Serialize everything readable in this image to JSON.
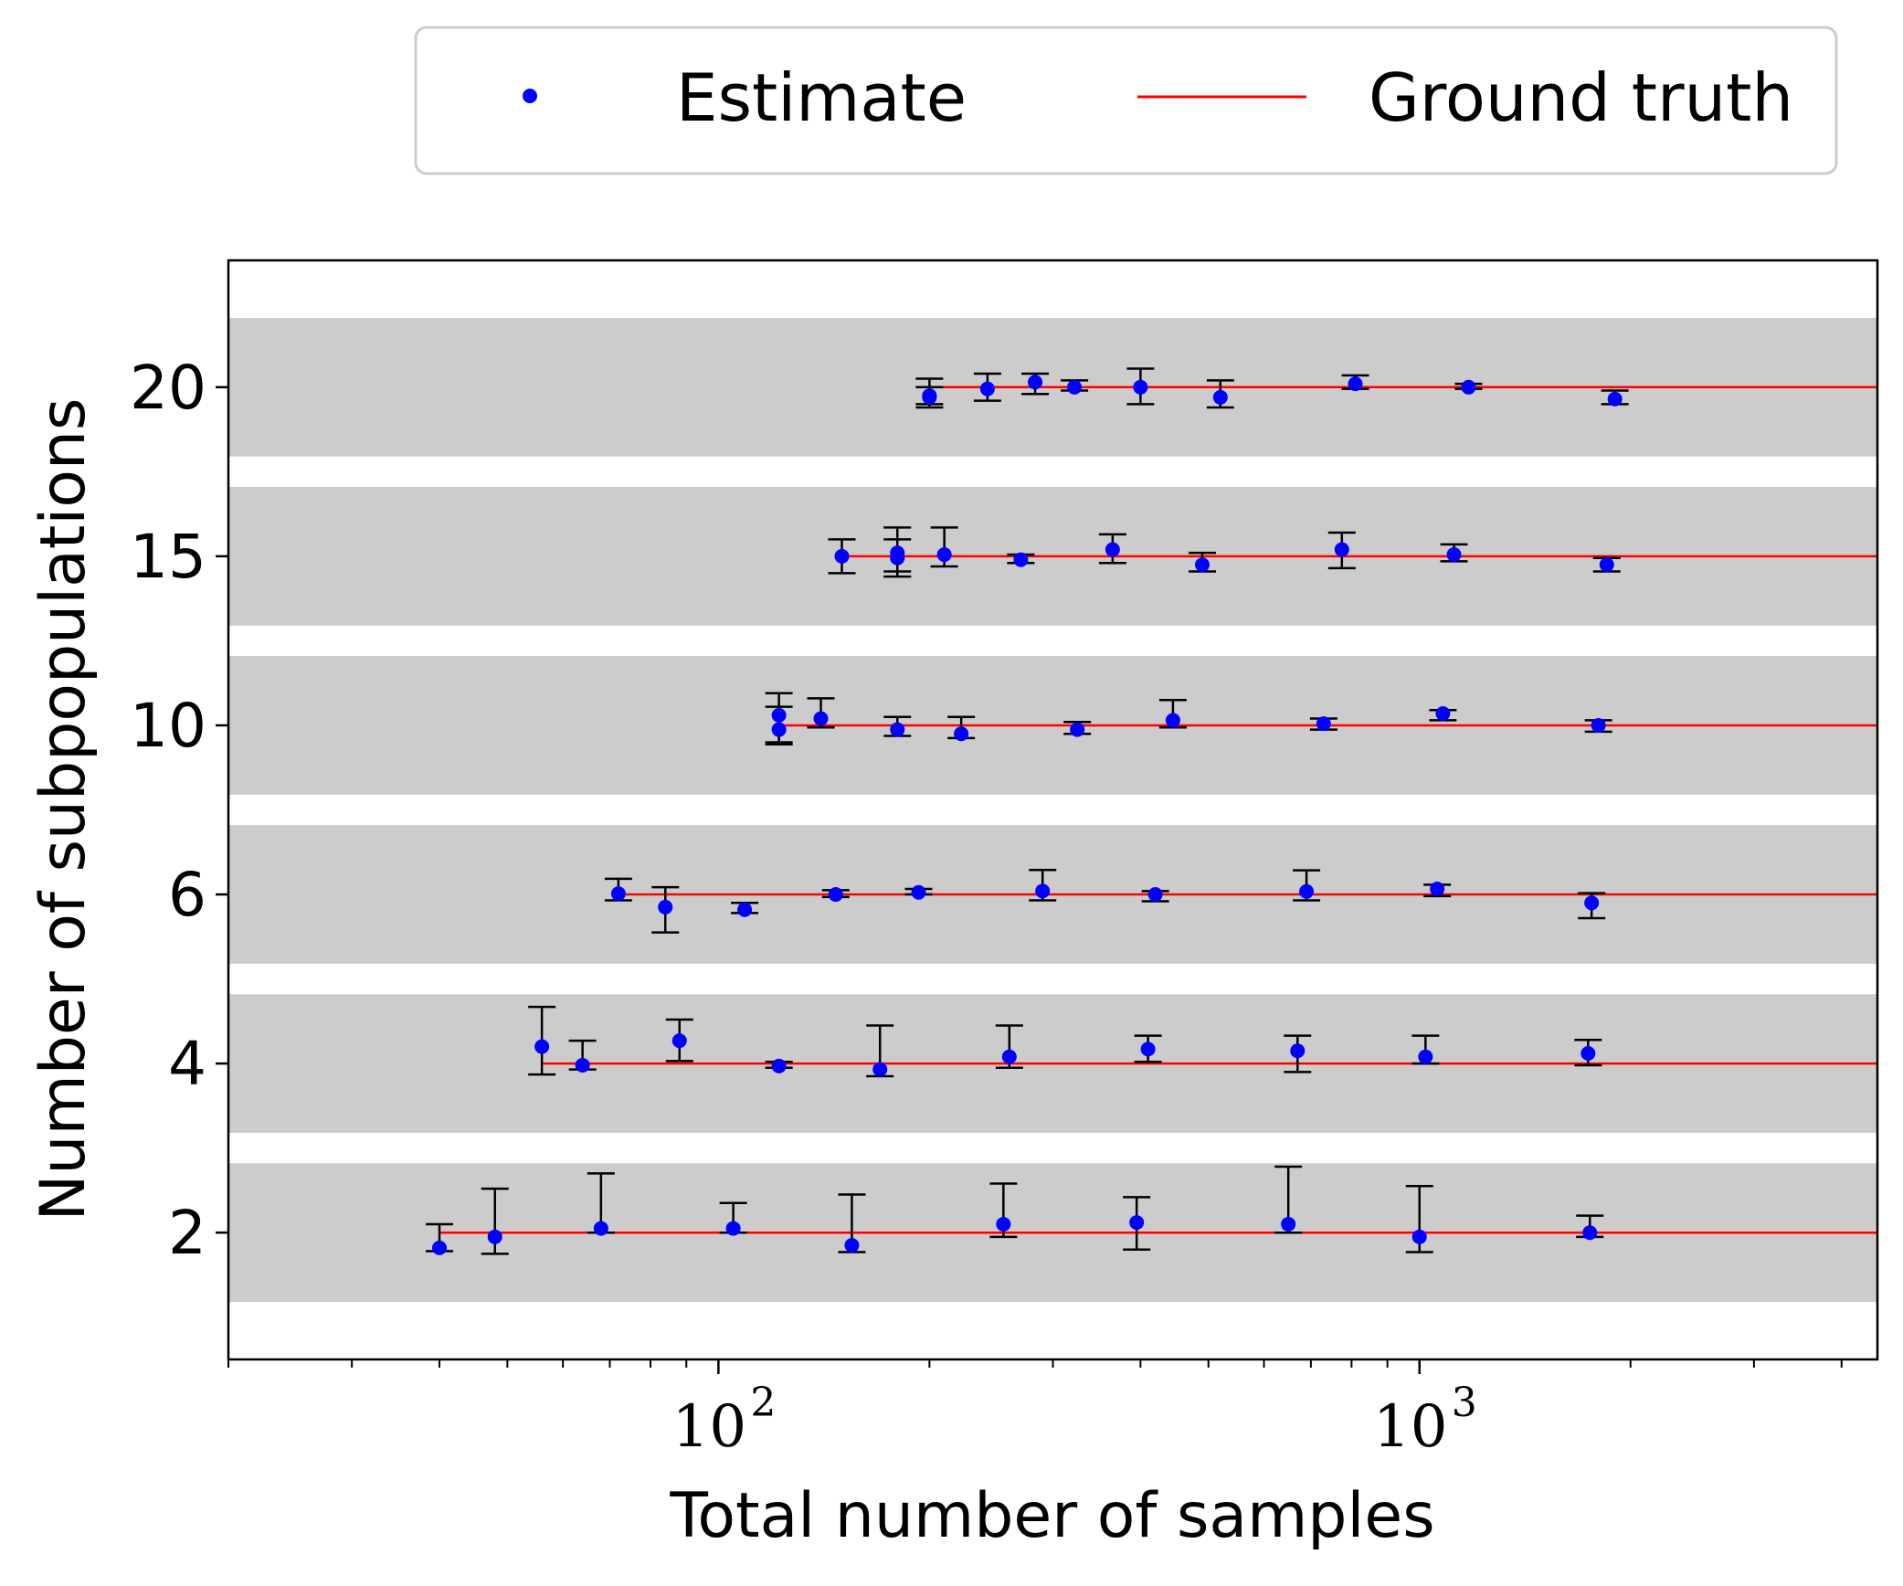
{
  "chart_data": {
    "type": "scatter",
    "title": "",
    "xlabel": "Total number of samples",
    "ylabel": "Number of subpopulations",
    "x_scale": "log",
    "xlim": [
      20,
      4500
    ],
    "x_ticks": [
      {
        "base": "10",
        "exp": "2",
        "value": 100
      },
      {
        "base": "10",
        "exp": "3",
        "value": 1000
      }
    ],
    "y_categories": [
      "2",
      "4",
      "6",
      "10",
      "15",
      "20"
    ],
    "y_display_range": [
      -0.75,
      5.75
    ],
    "band_half_height": 0.41,
    "legend": {
      "position": "top-center, above plot",
      "entries": [
        {
          "label": "Estimate",
          "marker": "dot",
          "color": "#0000ff"
        },
        {
          "label": "Ground truth",
          "marker": "line",
          "color": "#ff0000"
        }
      ]
    },
    "colors": {
      "estimate": "#0000ff",
      "ground_truth": "#ff0000",
      "errorbar": "#000000",
      "band": "#cccccc"
    },
    "series": [
      {
        "group": "2",
        "ground_truth": 2,
        "truth_x_start": 40,
        "points": [
          {
            "x": 40,
            "y": 1.82,
            "lo": 1.78,
            "hi": 2.1
          },
          {
            "x": 48,
            "y": 1.95,
            "lo": 1.75,
            "hi": 2.52
          },
          {
            "x": 68,
            "y": 2.05,
            "lo": 2.0,
            "hi": 2.7
          },
          {
            "x": 105,
            "y": 2.05,
            "lo": 2.0,
            "hi": 2.35
          },
          {
            "x": 155,
            "y": 1.85,
            "lo": 1.77,
            "hi": 2.45
          },
          {
            "x": 255,
            "y": 2.1,
            "lo": 1.95,
            "hi": 2.58
          },
          {
            "x": 395,
            "y": 2.12,
            "lo": 1.8,
            "hi": 2.42
          },
          {
            "x": 650,
            "y": 2.1,
            "lo": 2.0,
            "hi": 2.78
          },
          {
            "x": 1000,
            "y": 1.95,
            "lo": 1.77,
            "hi": 2.55
          },
          {
            "x": 1750,
            "y": 2.0,
            "lo": 1.95,
            "hi": 2.2
          }
        ]
      },
      {
        "group": "4",
        "ground_truth": 4,
        "truth_x_start": 56,
        "points": [
          {
            "x": 56,
            "y": 4.2,
            "lo": 3.87,
            "hi": 4.67
          },
          {
            "x": 64,
            "y": 3.98,
            "lo": 3.93,
            "hi": 4.27
          },
          {
            "x": 88,
            "y": 4.27,
            "lo": 4.03,
            "hi": 4.52
          },
          {
            "x": 122,
            "y": 3.97,
            "lo": 3.95,
            "hi": 4.02
          },
          {
            "x": 170,
            "y": 3.93,
            "lo": 3.85,
            "hi": 4.45
          },
          {
            "x": 260,
            "y": 4.08,
            "lo": 3.95,
            "hi": 4.45
          },
          {
            "x": 410,
            "y": 4.17,
            "lo": 4.02,
            "hi": 4.33
          },
          {
            "x": 670,
            "y": 4.15,
            "lo": 3.9,
            "hi": 4.33
          },
          {
            "x": 1020,
            "y": 4.08,
            "lo": 4.0,
            "hi": 4.33
          },
          {
            "x": 1740,
            "y": 4.12,
            "lo": 3.98,
            "hi": 4.28
          }
        ]
      },
      {
        "group": "6",
        "ground_truth": 6,
        "truth_x_start": 72,
        "points": [
          {
            "x": 72,
            "y": 6.02,
            "lo": 5.93,
            "hi": 6.37
          },
          {
            "x": 84,
            "y": 5.85,
            "lo": 5.55,
            "hi": 6.17
          },
          {
            "x": 109,
            "y": 5.82,
            "lo": 5.78,
            "hi": 5.9
          },
          {
            "x": 147,
            "y": 6.0,
            "lo": 5.97,
            "hi": 6.1
          },
          {
            "x": 193,
            "y": 6.05,
            "lo": 6.0,
            "hi": 6.13
          },
          {
            "x": 290,
            "y": 6.08,
            "lo": 5.93,
            "hi": 6.58
          },
          {
            "x": 420,
            "y": 6.0,
            "lo": 5.92,
            "hi": 6.08
          },
          {
            "x": 690,
            "y": 6.07,
            "lo": 5.93,
            "hi": 6.57
          },
          {
            "x": 1060,
            "y": 6.13,
            "lo": 5.98,
            "hi": 6.23
          },
          {
            "x": 1760,
            "y": 5.9,
            "lo": 5.72,
            "hi": 6.03
          }
        ]
      },
      {
        "group": "10",
        "ground_truth": 10,
        "truth_x_start": 122,
        "points": [
          {
            "x": 122,
            "y": 10.3,
            "lo": 9.55,
            "hi": 10.95
          },
          {
            "x": 122,
            "y": 9.9,
            "lo": 9.6,
            "hi": 10.55
          },
          {
            "x": 140,
            "y": 10.2,
            "lo": 9.95,
            "hi": 10.8
          },
          {
            "x": 180,
            "y": 9.9,
            "lo": 9.75,
            "hi": 10.25
          },
          {
            "x": 222,
            "y": 9.8,
            "lo": 9.7,
            "hi": 10.25
          },
          {
            "x": 325,
            "y": 9.9,
            "lo": 9.8,
            "hi": 10.1
          },
          {
            "x": 445,
            "y": 10.15,
            "lo": 9.95,
            "hi": 10.75
          },
          {
            "x": 730,
            "y": 10.05,
            "lo": 9.9,
            "hi": 10.2
          },
          {
            "x": 1080,
            "y": 10.35,
            "lo": 10.15,
            "hi": 10.45
          },
          {
            "x": 1800,
            "y": 10.0,
            "lo": 9.85,
            "hi": 10.15
          }
        ]
      },
      {
        "group": "15",
        "ground_truth": 15,
        "truth_x_start": 150,
        "points": [
          {
            "x": 150,
            "y": 15.0,
            "lo": 14.5,
            "hi": 15.5
          },
          {
            "x": 180,
            "y": 14.95,
            "lo": 14.4,
            "hi": 15.5
          },
          {
            "x": 180,
            "y": 15.1,
            "lo": 14.55,
            "hi": 15.85
          },
          {
            "x": 210,
            "y": 15.05,
            "lo": 14.7,
            "hi": 15.85
          },
          {
            "x": 270,
            "y": 14.9,
            "lo": 14.8,
            "hi": 15.05
          },
          {
            "x": 365,
            "y": 15.2,
            "lo": 14.8,
            "hi": 15.65
          },
          {
            "x": 490,
            "y": 14.75,
            "lo": 14.55,
            "hi": 15.1
          },
          {
            "x": 775,
            "y": 15.2,
            "lo": 14.65,
            "hi": 15.7
          },
          {
            "x": 1120,
            "y": 15.05,
            "lo": 14.85,
            "hi": 15.35
          },
          {
            "x": 1850,
            "y": 14.75,
            "lo": 14.55,
            "hi": 14.95
          }
        ]
      },
      {
        "group": "20",
        "ground_truth": 20,
        "truth_x_start": 200,
        "points": [
          {
            "x": 200,
            "y": 19.7,
            "lo": 19.4,
            "hi": 20.25
          },
          {
            "x": 200,
            "y": 19.75,
            "lo": 19.5,
            "hi": 20.0
          },
          {
            "x": 242,
            "y": 19.95,
            "lo": 19.6,
            "hi": 20.4
          },
          {
            "x": 283,
            "y": 20.15,
            "lo": 19.8,
            "hi": 20.4
          },
          {
            "x": 322,
            "y": 20.0,
            "lo": 19.9,
            "hi": 20.2
          },
          {
            "x": 400,
            "y": 20.0,
            "lo": 19.5,
            "hi": 20.55
          },
          {
            "x": 520,
            "y": 19.7,
            "lo": 19.4,
            "hi": 20.2
          },
          {
            "x": 810,
            "y": 20.1,
            "lo": 19.95,
            "hi": 20.35
          },
          {
            "x": 1175,
            "y": 20.0,
            "lo": 19.95,
            "hi": 20.1
          },
          {
            "x": 1900,
            "y": 19.65,
            "lo": 19.5,
            "hi": 19.9
          }
        ]
      }
    ]
  }
}
